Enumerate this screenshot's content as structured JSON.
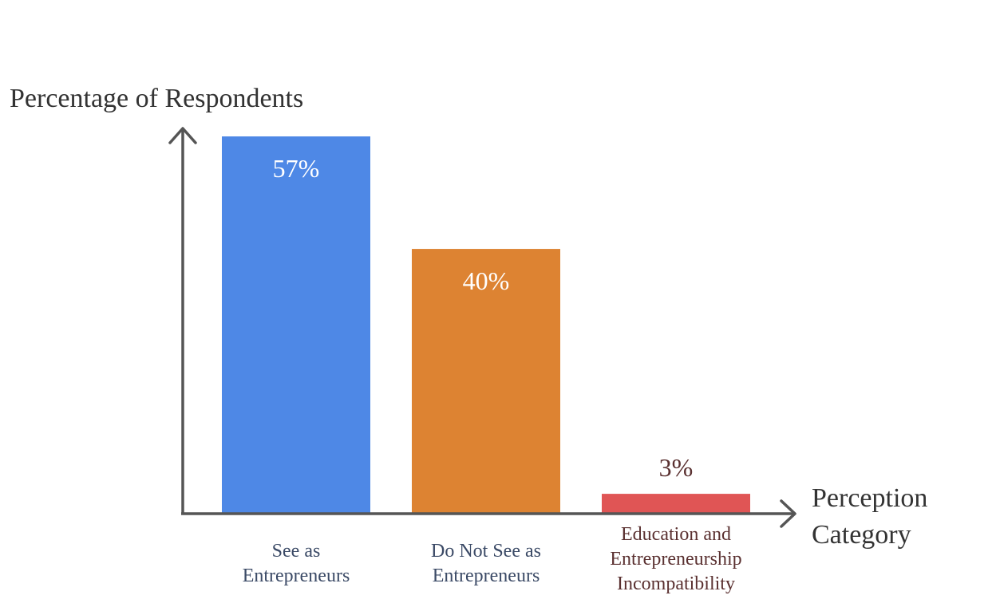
{
  "chart_data": {
    "type": "bar",
    "ylabel": "Percentage of Respondents",
    "xlabel": [
      "Perception",
      "Category"
    ],
    "categories": [
      [
        "See as",
        "Entrepreneurs"
      ],
      [
        "Do Not See as",
        "Entrepreneurs"
      ],
      [
        "Education and",
        "Entrepreneurship",
        "Incompatibility"
      ]
    ],
    "values": [
      57,
      40,
      3
    ],
    "value_labels": [
      "57%",
      "40%",
      "3%"
    ],
    "colors": [
      "#4e88e6",
      "#dd8332",
      "#e05555"
    ],
    "label_colors": [
      "#3b4a66",
      "#3b4a66",
      "#5a3030"
    ],
    "ylim": [
      0,
      57
    ],
    "grid": false,
    "legend": "none"
  }
}
